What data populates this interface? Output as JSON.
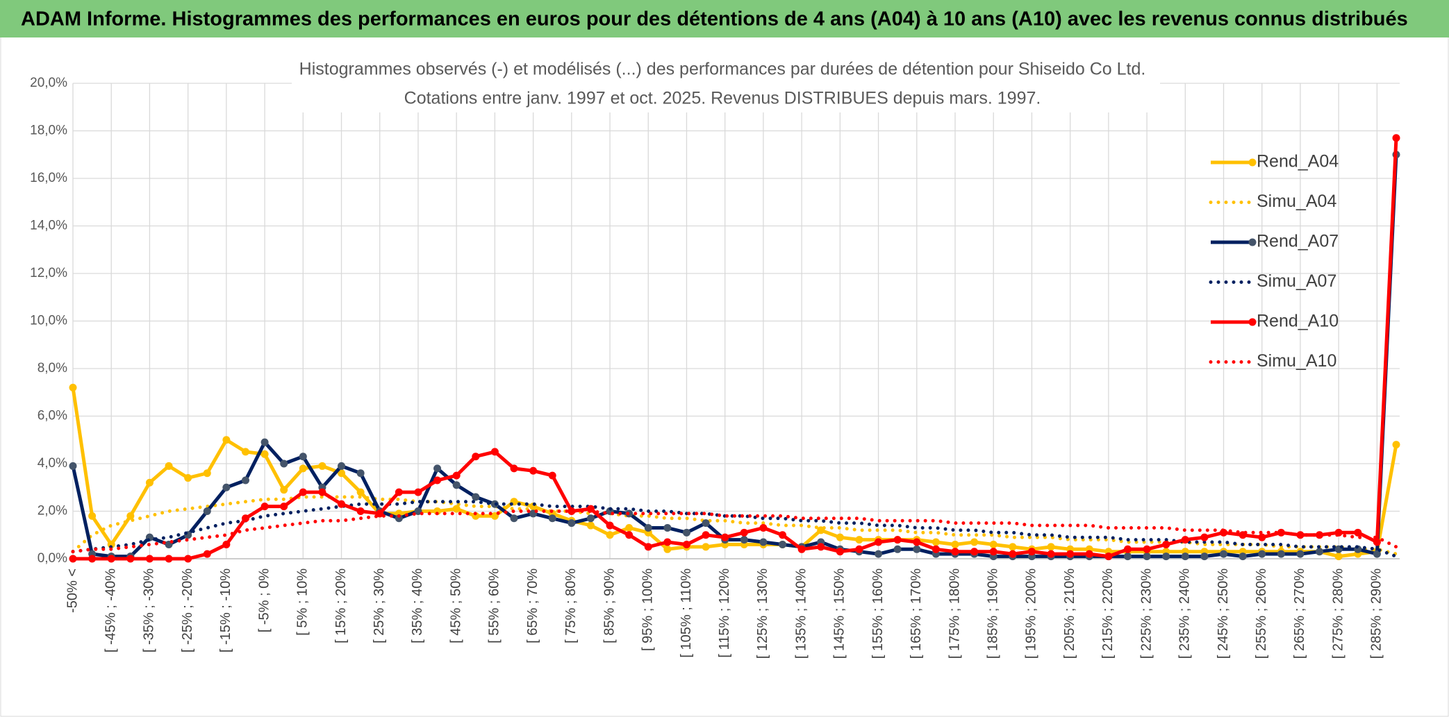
{
  "header": {
    "title": "ADAM Informe. Histogrammes des performances en euros pour des détentions de 4 ans (A04) à 10 ans (A10) avec les revenus connus distribués"
  },
  "chart_data": {
    "type": "line",
    "title": "Histogrammes observés (-) et modélisés (...) des performances par durées de détention pour Shiseido Co Ltd.",
    "subtitle": "Cotations entre janv. 1997 et oct. 2025. Revenus DISTRIBUES depuis mars. 1997.",
    "categories": [
      "-50% <",
      null,
      "[ -45% ; -40%",
      null,
      "[ -35% ; -30%",
      null,
      "[ -25% ; -20%",
      null,
      "[ -15% ; -10%",
      null,
      "[ -5% ; 0%",
      null,
      "[ 5% ; 10%",
      null,
      "[ 15% ; 20%",
      null,
      "[ 25% ; 30%",
      null,
      "[ 35% ; 40%",
      null,
      "[ 45% ; 50%",
      null,
      "[ 55% ; 60%",
      null,
      "[ 65% ; 70%",
      null,
      "[ 75% ; 80%",
      null,
      "[ 85% ; 90%",
      null,
      "[ 95% ; 100%",
      null,
      "[ 105% ; 110%",
      null,
      "[ 115% ; 120%",
      null,
      "[ 125% ; 130%",
      null,
      "[ 135% ; 140%",
      null,
      "[ 145% ; 150%",
      null,
      "[ 155% ; 160%",
      null,
      "[ 165% ; 170%",
      null,
      "[ 175% ; 180%",
      null,
      "[ 185% ; 190%",
      null,
      "[ 195% ; 200%",
      null,
      "[ 205% ; 210%",
      null,
      "[ 215% ; 220%",
      null,
      "[ 225% ; 230%",
      null,
      "[ 235% ; 240%",
      null,
      "[ 245% ; 250%",
      null,
      "[ 255% ; 260%",
      null,
      "[ 265% ; 270%",
      null,
      "[ 275% ; 280%",
      null,
      "[ 285% ; 290%",
      null
    ],
    "series": [
      {
        "name": "Rend_A04",
        "color": "#ffc000",
        "style": "solid",
        "values": [
          7.2,
          1.8,
          0.6,
          1.8,
          3.2,
          3.9,
          3.4,
          3.6,
          5.0,
          4.5,
          4.4,
          2.9,
          3.8,
          3.9,
          3.6,
          2.8,
          1.9,
          1.9,
          2.0,
          2.0,
          2.1,
          1.8,
          1.8,
          2.4,
          2.2,
          1.9,
          1.6,
          1.4,
          1.0,
          1.3,
          1.1,
          0.4,
          0.5,
          0.5,
          0.6,
          0.6,
          0.6,
          0.6,
          0.5,
          1.2,
          0.9,
          0.8,
          0.8,
          0.8,
          0.8,
          0.7,
          0.6,
          0.7,
          0.6,
          0.5,
          0.4,
          0.5,
          0.4,
          0.4,
          0.3,
          0.3,
          0.3,
          0.3,
          0.3,
          0.3,
          0.3,
          0.3,
          0.3,
          0.3,
          0.3,
          0.3,
          0.1,
          0.2,
          0.3,
          4.8
        ]
      },
      {
        "name": "Simu_A04",
        "color": "#ffc000",
        "style": "dotted",
        "values": [
          0.3,
          1.0,
          1.4,
          1.6,
          1.8,
          2.0,
          2.1,
          2.2,
          2.3,
          2.4,
          2.5,
          2.5,
          2.6,
          2.6,
          2.6,
          2.6,
          2.5,
          2.5,
          2.4,
          2.4,
          2.3,
          2.2,
          2.2,
          2.1,
          2.1,
          2.0,
          2.0,
          1.9,
          1.9,
          1.8,
          1.8,
          1.7,
          1.7,
          1.6,
          1.6,
          1.5,
          1.5,
          1.4,
          1.4,
          1.3,
          1.3,
          1.2,
          1.2,
          1.2,
          1.1,
          1.1,
          1.0,
          1.0,
          1.0,
          0.9,
          0.9,
          0.9,
          0.8,
          0.8,
          0.8,
          0.7,
          0.7,
          0.7,
          0.7,
          0.6,
          0.6,
          0.6,
          0.6,
          0.5,
          0.5,
          0.5,
          0.5,
          0.4,
          0.4,
          0.2
        ]
      },
      {
        "name": "Rend_A07",
        "color": "#002060",
        "marker": "#44546a",
        "style": "solid",
        "values": [
          3.9,
          0.2,
          0.1,
          0.1,
          0.9,
          0.6,
          1.0,
          2.0,
          3.0,
          3.3,
          4.9,
          4.0,
          4.3,
          3.0,
          3.9,
          3.6,
          2.0,
          1.7,
          2.0,
          3.8,
          3.1,
          2.6,
          2.3,
          1.7,
          1.9,
          1.7,
          1.5,
          1.7,
          2.0,
          1.9,
          1.3,
          1.3,
          1.1,
          1.5,
          0.8,
          0.8,
          0.7,
          0.6,
          0.5,
          0.7,
          0.4,
          0.3,
          0.2,
          0.4,
          0.4,
          0.2,
          0.2,
          0.2,
          0.1,
          0.1,
          0.1,
          0.1,
          0.1,
          0.1,
          0.1,
          0.1,
          0.1,
          0.1,
          0.1,
          0.1,
          0.2,
          0.1,
          0.2,
          0.2,
          0.2,
          0.3,
          0.4,
          0.4,
          0.2,
          17.0
        ]
      },
      {
        "name": "Simu_A07",
        "color": "#002060",
        "style": "dotted",
        "values": [
          0.3,
          0.4,
          0.5,
          0.6,
          0.8,
          0.9,
          1.1,
          1.3,
          1.5,
          1.6,
          1.8,
          1.9,
          2.0,
          2.1,
          2.2,
          2.3,
          2.3,
          2.3,
          2.4,
          2.4,
          2.4,
          2.4,
          2.3,
          2.3,
          2.3,
          2.2,
          2.2,
          2.2,
          2.1,
          2.1,
          2.0,
          2.0,
          1.9,
          1.9,
          1.8,
          1.8,
          1.7,
          1.7,
          1.6,
          1.6,
          1.5,
          1.5,
          1.4,
          1.4,
          1.3,
          1.3,
          1.2,
          1.2,
          1.1,
          1.1,
          1.0,
          1.0,
          0.9,
          0.9,
          0.9,
          0.8,
          0.8,
          0.8,
          0.7,
          0.7,
          0.7,
          0.6,
          0.6,
          0.6,
          0.5,
          0.5,
          0.5,
          0.5,
          0.4,
          0.1
        ]
      },
      {
        "name": "Rend_A10",
        "color": "#ff0000",
        "style": "solid",
        "values": [
          0.0,
          0.0,
          0.0,
          0.0,
          0.0,
          0.0,
          0.0,
          0.2,
          0.6,
          1.7,
          2.2,
          2.2,
          2.8,
          2.8,
          2.3,
          2.0,
          1.9,
          2.8,
          2.8,
          3.3,
          3.5,
          4.3,
          4.5,
          3.8,
          3.7,
          3.5,
          2.0,
          2.1,
          1.4,
          1.0,
          0.5,
          0.7,
          0.6,
          1.0,
          0.9,
          1.1,
          1.3,
          1.0,
          0.4,
          0.5,
          0.3,
          0.4,
          0.7,
          0.8,
          0.7,
          0.4,
          0.3,
          0.3,
          0.3,
          0.2,
          0.3,
          0.2,
          0.2,
          0.2,
          0.1,
          0.4,
          0.4,
          0.6,
          0.8,
          0.9,
          1.1,
          1.0,
          0.9,
          1.1,
          1.0,
          1.0,
          1.1,
          1.1,
          0.7,
          17.7
        ]
      },
      {
        "name": "Simu_A10",
        "color": "#ff0000",
        "style": "dotted",
        "values": [
          0.3,
          0.4,
          0.4,
          0.5,
          0.6,
          0.7,
          0.8,
          0.9,
          1.0,
          1.2,
          1.3,
          1.4,
          1.5,
          1.6,
          1.6,
          1.7,
          1.8,
          1.8,
          1.9,
          1.9,
          1.9,
          1.9,
          1.9,
          2.0,
          2.0,
          2.0,
          2.0,
          2.0,
          1.9,
          1.9,
          1.9,
          1.9,
          1.9,
          1.9,
          1.8,
          1.8,
          1.8,
          1.8,
          1.7,
          1.7,
          1.7,
          1.7,
          1.6,
          1.6,
          1.6,
          1.6,
          1.5,
          1.5,
          1.5,
          1.5,
          1.4,
          1.4,
          1.4,
          1.4,
          1.3,
          1.3,
          1.3,
          1.3,
          1.2,
          1.2,
          1.2,
          1.1,
          1.1,
          1.1,
          1.0,
          1.0,
          1.0,
          0.9,
          0.9,
          0.5
        ]
      }
    ],
    "ylim": [
      0,
      20
    ],
    "yticks": [
      {
        "value": 0,
        "label": "0,0%"
      },
      {
        "value": 2,
        "label": "2,0%"
      },
      {
        "value": 4,
        "label": "4,0%"
      },
      {
        "value": 6,
        "label": "6,0%"
      },
      {
        "value": 8,
        "label": "8,0%"
      },
      {
        "value": 10,
        "label": "10,0%"
      },
      {
        "value": 12,
        "label": "12,0%"
      },
      {
        "value": 14,
        "label": "14,0%"
      },
      {
        "value": 16,
        "label": "16,0%"
      },
      {
        "value": 18,
        "label": "18,0%"
      },
      {
        "value": 20,
        "label": "20,0%"
      }
    ],
    "grid": true,
    "legend": "right"
  }
}
